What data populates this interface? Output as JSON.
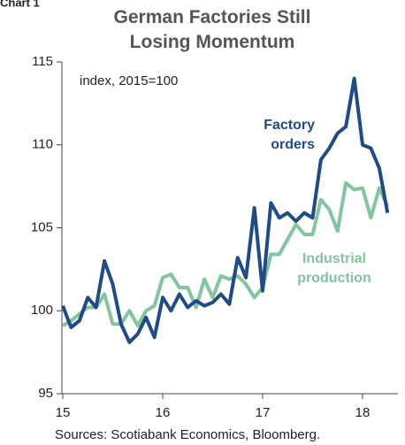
{
  "chart_data": {
    "type": "line",
    "chart_label": "Chart 1",
    "title": "German Factories Still Losing Momentum",
    "annotation": "index, 2015=100",
    "source": "Sources: Scotiabank Economics, Bloomberg.",
    "x": [
      15,
      15.083,
      15.167,
      15.25,
      15.333,
      15.417,
      15.5,
      15.583,
      15.667,
      15.75,
      15.833,
      15.917,
      16,
      16.083,
      16.167,
      16.25,
      16.333,
      16.417,
      16.5,
      16.583,
      16.667,
      16.75,
      16.833,
      16.917,
      17,
      17.083,
      17.167,
      17.25,
      17.333,
      17.417,
      17.5,
      17.583,
      17.667,
      17.75,
      17.833,
      17.917,
      18,
      18.083,
      18.167,
      18.25
    ],
    "series": [
      {
        "name": "Factory orders",
        "color": "#1f4b87",
        "values": [
          100.3,
          99.0,
          99.4,
          100.8,
          100.2,
          103.0,
          101.6,
          99.2,
          98.1,
          98.6,
          99.6,
          98.4,
          100.8,
          100.0,
          101.0,
          100.2,
          100.6,
          100.3,
          100.5,
          101.0,
          100.4,
          103.2,
          102.0,
          106.2,
          101.2,
          106.5,
          105.6,
          105.9,
          105.4,
          105.9,
          105.6,
          109.1,
          109.8,
          110.7,
          111.1,
          114.0,
          110.0,
          109.8,
          108.6,
          105.9
        ]
      },
      {
        "name": "Industrial production",
        "color": "#83c59d",
        "values": [
          99.1,
          99.4,
          99.8,
          100.2,
          100.2,
          101.0,
          99.2,
          99.2,
          100.0,
          99.1,
          100.0,
          100.3,
          102.0,
          102.2,
          101.4,
          101.4,
          100.2,
          101.9,
          100.8,
          102.1,
          101.9,
          102.1,
          101.6,
          100.8,
          101.4,
          103.4,
          103.4,
          104.3,
          105.2,
          104.6,
          104.6,
          106.7,
          106.1,
          104.8,
          107.7,
          107.3,
          107.4,
          105.6,
          107.4,
          106.3
        ]
      }
    ],
    "xlim": [
      15,
      18.4
    ],
    "xticks": [
      15,
      16,
      17,
      18
    ],
    "ylim": [
      95,
      115
    ],
    "yticks": [
      95,
      100,
      105,
      110,
      115
    ],
    "grid": false
  }
}
